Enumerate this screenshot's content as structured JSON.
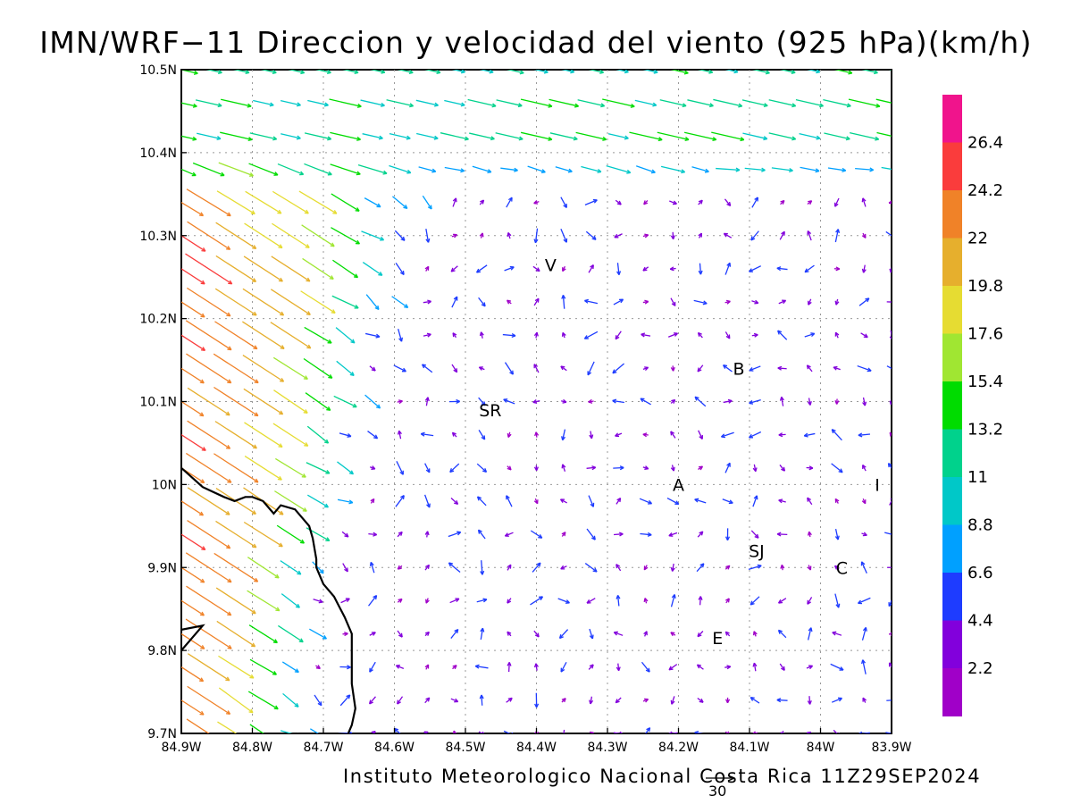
{
  "title": "IMN/WRF−11 Direccion y velocidad del viento (925 hPa)(km/h)",
  "footer": {
    "credit": "Instituto Meteorologico Nacional Costa Rica  11Z29SEP2024",
    "reference_vector": "30"
  },
  "map": {
    "lat_range": [
      9.7,
      10.5
    ],
    "lon_range": [
      -84.9,
      -83.9
    ],
    "grid": "dotted",
    "lat_labels": [
      "10.5N",
      "10.4N",
      "10.3N",
      "10.2N",
      "10.1N",
      "10N",
      "9.9N",
      "9.8N",
      "9.7N"
    ],
    "lon_labels": [
      "84.9W",
      "84.8W",
      "84.7W",
      "84.6W",
      "84.5W",
      "84.4W",
      "84.3W",
      "84.2W",
      "84.1W",
      "84W",
      "83.9W"
    ],
    "places": [
      {
        "text": "V",
        "lon": -84.38,
        "lat": 10.265
      },
      {
        "text": "B",
        "lon": -84.115,
        "lat": 10.14
      },
      {
        "text": "SR",
        "lon": -84.465,
        "lat": 10.09
      },
      {
        "text": "A",
        "lon": -84.2,
        "lat": 10.0
      },
      {
        "text": "I",
        "lon": -83.92,
        "lat": 10.0
      },
      {
        "text": "SJ",
        "lon": -84.09,
        "lat": 9.92
      },
      {
        "text": "C",
        "lon": -83.97,
        "lat": 9.9
      },
      {
        "text": "E",
        "lon": -84.145,
        "lat": 9.815
      }
    ]
  },
  "colorbar": {
    "labels": [
      "26.4",
      "24.2",
      "22",
      "19.8",
      "17.6",
      "15.4",
      "13.2",
      "11",
      "8.8",
      "6.6",
      "4.4",
      "2.2"
    ],
    "colors": [
      "#f0148c",
      "#fa3c3c",
      "#f08228",
      "#e6af2d",
      "#e6dc32",
      "#a0e632",
      "#00dc00",
      "#00d28c",
      "#00c8c8",
      "#00a0ff",
      "#1e3cff",
      "#8200dc",
      "#a000c8"
    ]
  },
  "coastline": {
    "segments": [
      [
        [
          -84.9,
          10.02
        ],
        [
          -84.87,
          9.997
        ],
        [
          -84.84,
          9.985
        ],
        [
          -84.825,
          9.98
        ],
        [
          -84.81,
          9.985
        ],
        [
          -84.8,
          9.985
        ],
        [
          -84.785,
          9.98
        ],
        [
          -84.77,
          9.965
        ],
        [
          -84.76,
          9.975
        ],
        [
          -84.74,
          9.97
        ],
        [
          -84.72,
          9.95
        ],
        [
          -84.715,
          9.935
        ],
        [
          -84.71,
          9.91
        ],
        [
          -84.71,
          9.9
        ],
        [
          -84.7,
          9.88
        ],
        [
          -84.685,
          9.865
        ],
        [
          -84.67,
          9.84
        ],
        [
          -84.66,
          9.82
        ],
        [
          -84.66,
          9.78
        ],
        [
          -84.66,
          9.76
        ],
        [
          -84.655,
          9.73
        ],
        [
          -84.66,
          9.71
        ],
        [
          -84.665,
          9.7
        ]
      ],
      [
        [
          -84.9,
          9.825
        ],
        [
          -84.87,
          9.83
        ],
        [
          -84.89,
          9.81
        ],
        [
          -84.9,
          9.8
        ]
      ]
    ]
  }
}
